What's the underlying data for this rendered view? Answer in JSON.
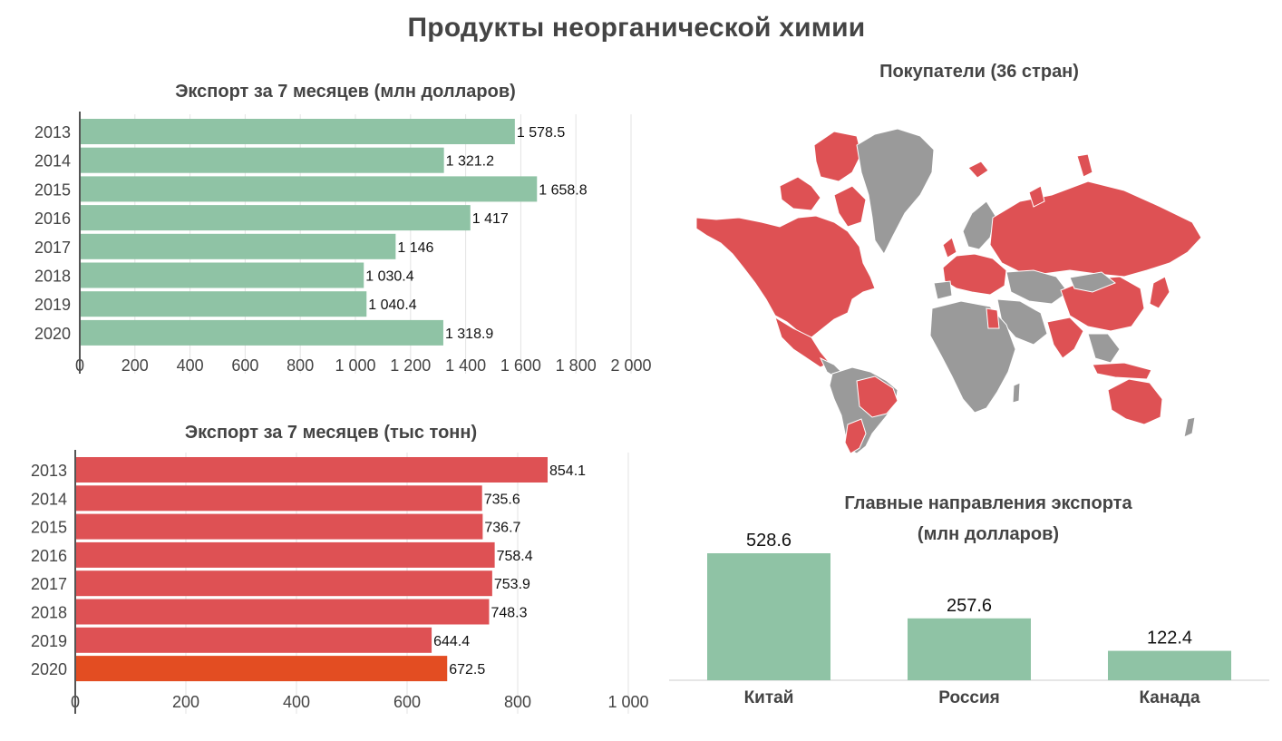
{
  "title": "Продукты неорганической химии",
  "colors": {
    "green": "#8fc3a5",
    "red": "#de5154",
    "highlight": "#e34d22",
    "grey": "#9a9a9a",
    "text": "#444444"
  },
  "map": {
    "title": "Покупатели (36 стран)"
  },
  "chart_data": [
    {
      "type": "bar",
      "orientation": "horizontal",
      "title": "Экспорт за 7 месяцев (млн долларов)",
      "categories": [
        "2013",
        "2014",
        "2015",
        "2016",
        "2017",
        "2018",
        "2019",
        "2020"
      ],
      "values": [
        1578.5,
        1321.2,
        1658.8,
        1417,
        1146,
        1030.4,
        1040.4,
        1318.9
      ],
      "value_labels": [
        "1 578.5",
        "1 321.2",
        "1 658.8",
        "1 417",
        "1 146",
        "1 030.4",
        "1 040.4",
        "1 318.9"
      ],
      "xlim": [
        0,
        2000
      ],
      "ticks": [
        0,
        200,
        400,
        600,
        800,
        1000,
        1200,
        1400,
        1600,
        1800,
        2000
      ],
      "tick_labels": [
        "0",
        "200",
        "400",
        "600",
        "800",
        "1 000",
        "1 200",
        "1 400",
        "1 600",
        "1 800",
        "2 000"
      ],
      "color": "#8fc3a5",
      "grid": true
    },
    {
      "type": "bar",
      "orientation": "horizontal",
      "title": "Экспорт за 7 месяцев (тыс тонн)",
      "categories": [
        "2013",
        "2014",
        "2015",
        "2016",
        "2017",
        "2018",
        "2019",
        "2020"
      ],
      "values": [
        854.1,
        735.6,
        736.7,
        758.4,
        753.9,
        748.3,
        644.4,
        672.5
      ],
      "value_labels": [
        "854.1",
        "735.6",
        "736.7",
        "758.4",
        "753.9",
        "748.3",
        "644.4",
        "672.5"
      ],
      "xlim": [
        0,
        1000
      ],
      "ticks": [
        0,
        200,
        400,
        600,
        800,
        1000
      ],
      "tick_labels": [
        "0",
        "200",
        "400",
        "600",
        "800",
        "1 000"
      ],
      "color": "#de5154",
      "highlight_color": "#e34d22",
      "highlight_index": 7,
      "grid": true
    },
    {
      "type": "bar",
      "orientation": "vertical",
      "title": "Главные направления экспорта",
      "subtitle": "(млн долларов)",
      "categories": [
        "Китай",
        "Россия",
        "Канада"
      ],
      "values": [
        528.6,
        257.6,
        122.4
      ],
      "value_labels": [
        "528.6",
        "257.6",
        "122.4"
      ],
      "color": "#8fc3a5",
      "grid": false
    }
  ]
}
